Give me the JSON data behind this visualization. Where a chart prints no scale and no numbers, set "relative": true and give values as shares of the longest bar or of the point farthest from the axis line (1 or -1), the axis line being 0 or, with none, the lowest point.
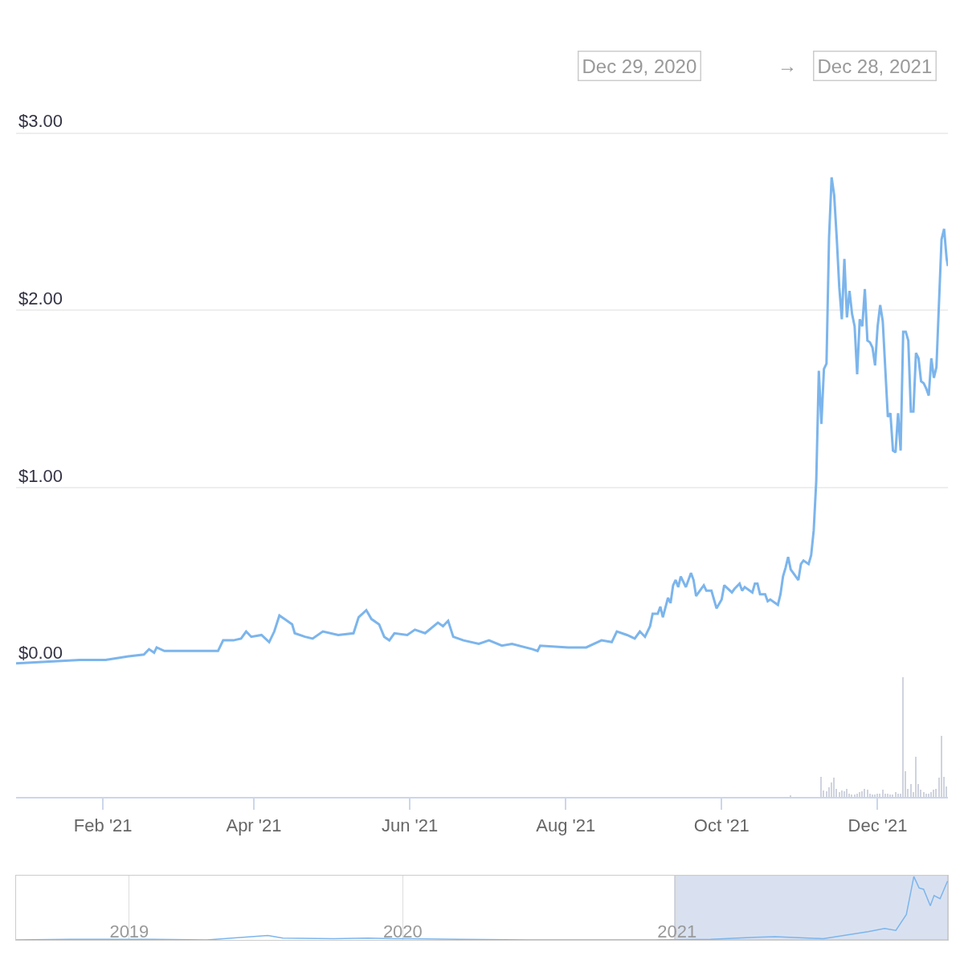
{
  "chart_data": [
    {
      "type": "line",
      "annotations": [
        "Dec 29, 2020",
        "→",
        "Dec 28, 2021"
      ],
      "color": "#7cb5ec",
      "line_style": "solid",
      "marker": "none",
      "grid": "y",
      "tick_labels": "y",
      "xlim": [
        "2020-12-29",
        "2021-12-28T12:00"
      ],
      "ylim": [
        0,
        3.75
      ],
      "yticks": [
        {
          "value": 0,
          "label": "$0.00"
        },
        {
          "value": 1,
          "label": "$1.00"
        },
        {
          "value": 2,
          "label": "$2.00"
        },
        {
          "value": 3,
          "label": "$3.00"
        }
      ],
      "x": [
        "2020-12-29",
        "2021-01-23",
        "2021-02-02",
        "2021-02-11",
        "2021-02-17",
        "2021-02-19",
        "2021-02-21",
        "2021-02-22",
        "2021-02-25",
        "2021-03-08",
        "2021-03-18",
        "2021-03-20",
        "2021-03-24",
        "2021-03-27",
        "2021-03-29",
        "2021-03-31",
        "2021-04-04",
        "2021-04-07",
        "2021-04-09",
        "2021-04-11",
        "2021-04-13",
        "2021-04-16",
        "2021-04-17",
        "2021-04-21",
        "2021-04-24",
        "2021-04-28",
        "2021-05-04",
        "2021-05-10",
        "2021-05-12",
        "2021-05-15",
        "2021-05-17",
        "2021-05-20",
        "2021-05-22",
        "2021-05-24",
        "2021-05-26",
        "2021-05-31",
        "2021-06-03",
        "2021-06-07",
        "2021-06-12",
        "2021-06-14",
        "2021-06-16",
        "2021-06-18",
        "2021-06-22",
        "2021-06-28",
        "2021-07-02",
        "2021-07-07",
        "2021-07-11",
        "2021-07-19",
        "2021-07-21",
        "2021-07-22",
        "2021-08-02",
        "2021-08-09",
        "2021-08-15",
        "2021-08-19",
        "2021-08-21",
        "2021-08-25",
        "2021-08-28",
        "2021-08-30",
        "2021-09-01",
        "2021-09-03",
        "2021-09-04",
        "2021-09-06",
        "2021-09-07",
        "2021-09-08",
        "2021-09-10",
        "2021-09-11",
        "2021-09-12",
        "2021-09-13",
        "2021-09-14",
        "2021-09-15",
        "2021-09-17",
        "2021-09-19",
        "2021-09-20",
        "2021-09-21",
        "2021-09-22",
        "2021-09-24",
        "2021-09-25",
        "2021-09-27",
        "2021-09-29",
        "2021-10-01",
        "2021-10-02",
        "2021-10-05",
        "2021-10-06",
        "2021-10-08",
        "2021-10-09",
        "2021-10-10",
        "2021-10-13",
        "2021-10-14",
        "2021-10-15",
        "2021-10-16",
        "2021-10-18",
        "2021-10-19",
        "2021-10-20",
        "2021-10-23",
        "2021-10-24",
        "2021-10-25",
        "2021-10-26",
        "2021-10-27",
        "2021-10-28",
        "2021-10-31",
        "2021-11-01",
        "2021-11-02",
        "2021-11-04",
        "2021-11-05",
        "2021-11-06",
        "2021-11-07",
        "2021-11-08",
        "2021-11-09",
        "2021-11-10",
        "2021-11-11",
        "2021-11-12",
        "2021-11-13",
        "2021-11-14",
        "2021-11-15",
        "2021-11-16",
        "2021-11-17",
        "2021-11-18",
        "2021-11-19",
        "2021-11-20",
        "2021-11-21",
        "2021-11-22",
        "2021-11-23",
        "2021-11-24",
        "2021-11-25",
        "2021-11-26",
        "2021-11-27",
        "2021-11-28",
        "2021-11-29",
        "2021-11-30",
        "2021-12-01",
        "2021-12-02",
        "2021-12-03",
        "2021-12-05",
        "2021-12-06",
        "2021-12-07",
        "2021-12-08",
        "2021-12-09",
        "2021-12-10",
        "2021-12-11",
        "2021-12-12",
        "2021-12-13",
        "2021-12-14",
        "2021-12-15",
        "2021-12-16",
        "2021-12-17",
        "2021-12-18",
        "2021-12-19",
        "2021-12-20",
        "2021-12-21",
        "2021-12-22",
        "2021-12-23",
        "2021-12-24",
        "2021-12-26",
        "2021-12-27",
        "2021-12-28",
        "2021-12-28T12:00"
      ],
      "values": [
        0.01,
        0.03,
        0.03,
        0.05,
        0.06,
        0.09,
        0.07,
        0.1,
        0.08,
        0.08,
        0.08,
        0.14,
        0.14,
        0.15,
        0.19,
        0.16,
        0.17,
        0.13,
        0.19,
        0.28,
        0.26,
        0.23,
        0.18,
        0.16,
        0.15,
        0.19,
        0.17,
        0.18,
        0.27,
        0.31,
        0.26,
        0.23,
        0.16,
        0.14,
        0.18,
        0.17,
        0.2,
        0.18,
        0.24,
        0.22,
        0.25,
        0.16,
        0.14,
        0.12,
        0.14,
        0.11,
        0.12,
        0.09,
        0.08,
        0.11,
        0.1,
        0.1,
        0.14,
        0.13,
        0.19,
        0.17,
        0.15,
        0.19,
        0.16,
        0.22,
        0.29,
        0.29,
        0.33,
        0.27,
        0.38,
        0.35,
        0.45,
        0.48,
        0.44,
        0.5,
        0.44,
        0.52,
        0.48,
        0.39,
        0.41,
        0.45,
        0.42,
        0.42,
        0.32,
        0.37,
        0.45,
        0.41,
        0.43,
        0.46,
        0.42,
        0.44,
        0.41,
        0.46,
        0.46,
        0.4,
        0.4,
        0.36,
        0.37,
        0.34,
        0.4,
        0.5,
        0.55,
        0.61,
        0.54,
        0.48,
        0.57,
        0.59,
        0.57,
        0.62,
        0.76,
        1.04,
        1.66,
        1.36,
        1.67,
        1.7,
        2.41,
        2.75,
        2.65,
        2.41,
        2.13,
        1.95,
        2.29,
        1.96,
        2.11,
        1.98,
        1.91,
        1.64,
        1.95,
        1.91,
        2.12,
        1.83,
        1.82,
        1.79,
        1.69,
        1.91,
        2.03,
        1.94,
        1.4,
        1.42,
        1.21,
        1.2,
        1.42,
        1.21,
        1.88,
        1.88,
        1.83,
        1.43,
        1.43,
        1.76,
        1.73,
        1.6,
        1.59,
        1.56,
        1.52,
        1.73,
        1.62,
        1.68,
        2.4,
        2.46,
        2.29,
        2.25
      ]
    },
    {
      "type": "bar",
      "relative": true,
      "color": "#cfd3de",
      "tick_labels": "x",
      "xlim": [
        "2020-12-29",
        "2021-12-28T12:00"
      ],
      "xticks": [
        {
          "value": "2021-02-01",
          "label": "Feb '21"
        },
        {
          "value": "2021-04-01",
          "label": "Apr '21"
        },
        {
          "value": "2021-06-01",
          "label": "Jun '21"
        },
        {
          "value": "2021-08-01",
          "label": "Aug '21"
        },
        {
          "value": "2021-10-01",
          "label": "Oct '21"
        },
        {
          "value": "2021-12-01",
          "label": "Dec '21"
        }
      ],
      "x": [
        "2021-10-28",
        "2021-11-09",
        "2021-11-10",
        "2021-11-11",
        "2021-11-12",
        "2021-11-13",
        "2021-11-14",
        "2021-11-15",
        "2021-11-16",
        "2021-11-17",
        "2021-11-18",
        "2021-11-19",
        "2021-11-20",
        "2021-11-21",
        "2021-11-22",
        "2021-11-23",
        "2021-11-24",
        "2021-11-25",
        "2021-11-26",
        "2021-11-27",
        "2021-11-28",
        "2021-11-29",
        "2021-11-30",
        "2021-12-01",
        "2021-12-02",
        "2021-12-03",
        "2021-12-04",
        "2021-12-05",
        "2021-12-06",
        "2021-12-07",
        "2021-12-08",
        "2021-12-09",
        "2021-12-10",
        "2021-12-11",
        "2021-12-12",
        "2021-12-13",
        "2021-12-14",
        "2021-12-15",
        "2021-12-16",
        "2021-12-17",
        "2021-12-18",
        "2021-12-19",
        "2021-12-20",
        "2021-12-21",
        "2021-12-22",
        "2021-12-23",
        "2021-12-24",
        "2021-12-25",
        "2021-12-26",
        "2021-12-27",
        "2021-12-28"
      ],
      "values": [
        0.015,
        0.17,
        0.056,
        0.05,
        0.08,
        0.12,
        0.16,
        0.07,
        0.04,
        0.056,
        0.05,
        0.07,
        0.03,
        0.02,
        0.02,
        0.03,
        0.04,
        0.05,
        0.07,
        0.06,
        0.03,
        0.02,
        0.02,
        0.03,
        0.03,
        0.06,
        0.03,
        0.03,
        0.02,
        0.02,
        0.04,
        0.03,
        0.03,
        1.0,
        0.22,
        0.07,
        0.11,
        0.04,
        0.34,
        0.11,
        0.06,
        0.04,
        0.03,
        0.03,
        0.04,
        0.06,
        0.07,
        0.16,
        0.51,
        0.17,
        0.09
      ]
    },
    {
      "type": "line",
      "relative": true,
      "color": "#7cb5ec",
      "grid": "x",
      "tick_labels": "x",
      "xlim": [
        "2018-08-03",
        "2021-12-28T12:00"
      ],
      "xticks": [
        {
          "value": "2019-01-01",
          "label": "2019"
        },
        {
          "value": "2020-01-01",
          "label": "2020"
        },
        {
          "value": "2021-01-01",
          "label": "2021"
        }
      ],
      "bands": [
        {
          "axis": "x",
          "from": "2020-12-29",
          "to": "2021-12-28T12:00",
          "color": "#d9e1f0"
        }
      ],
      "x": [
        "2018-08-03",
        "2018-10-15",
        "2019-02-01",
        "2019-04-15",
        "2019-07-05",
        "2019-07-25",
        "2019-10-01",
        "2019-11-15",
        "2019-12-20",
        "2020-03-15",
        "2020-06-15",
        "2020-12-01",
        "2021-02-15",
        "2021-04-15",
        "2021-05-12",
        "2021-07-15",
        "2021-09-13",
        "2021-10-05",
        "2021-10-20",
        "2021-11-03",
        "2021-11-13",
        "2021-11-20",
        "2021-11-26",
        "2021-12-05",
        "2021-12-10",
        "2021-12-18",
        "2021-12-28"
      ],
      "values": [
        0.0,
        0.01,
        0.01,
        0.0,
        0.07,
        0.03,
        0.02,
        0.03,
        0.02,
        0.01,
        0.0,
        0.0,
        0.01,
        0.04,
        0.05,
        0.02,
        0.13,
        0.18,
        0.15,
        0.4,
        1.0,
        0.82,
        0.8,
        0.54,
        0.7,
        0.65,
        0.93
      ]
    }
  ]
}
